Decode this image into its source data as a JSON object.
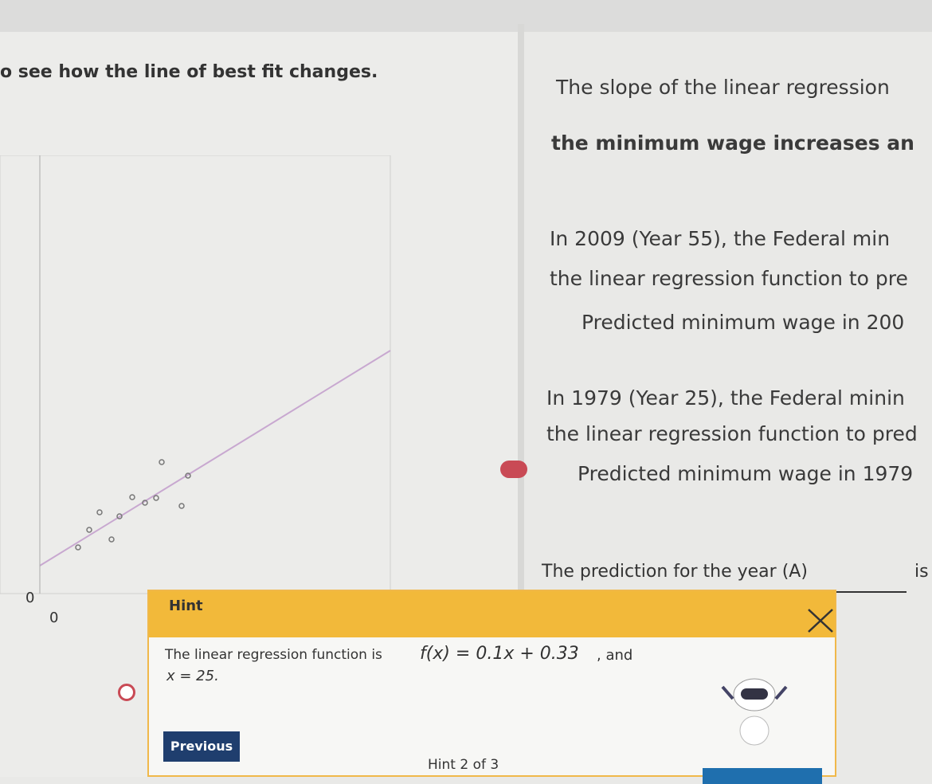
{
  "left_panel": {
    "instruction": "o see how the line of best fit changes.",
    "graph": {
      "y_axis_zero": "0",
      "x_axis_zero": "0"
    }
  },
  "right_panel": {
    "lines": [
      "The slope of the linear regression",
      "the minimum wage increases an",
      "In 2009 (Year 55), the Federal min",
      "the linear regression function to pre",
      "Predicted minimum wage in 200",
      "In 1979 (Year 25), the Federal minin",
      "the linear regression function to pred",
      "Predicted minimum wage in 1979",
      "The prediction for the year (A)"
    ],
    "answer_suffix": "is"
  },
  "hint": {
    "title": "Hint",
    "text_before": "The linear regression function is",
    "formula": "f(x) = 0.1x + 0.33",
    "text_after": ", and",
    "x_value": "x = 25.",
    "previous_button": "Previous",
    "counter": "Hint 2 of 3"
  }
}
